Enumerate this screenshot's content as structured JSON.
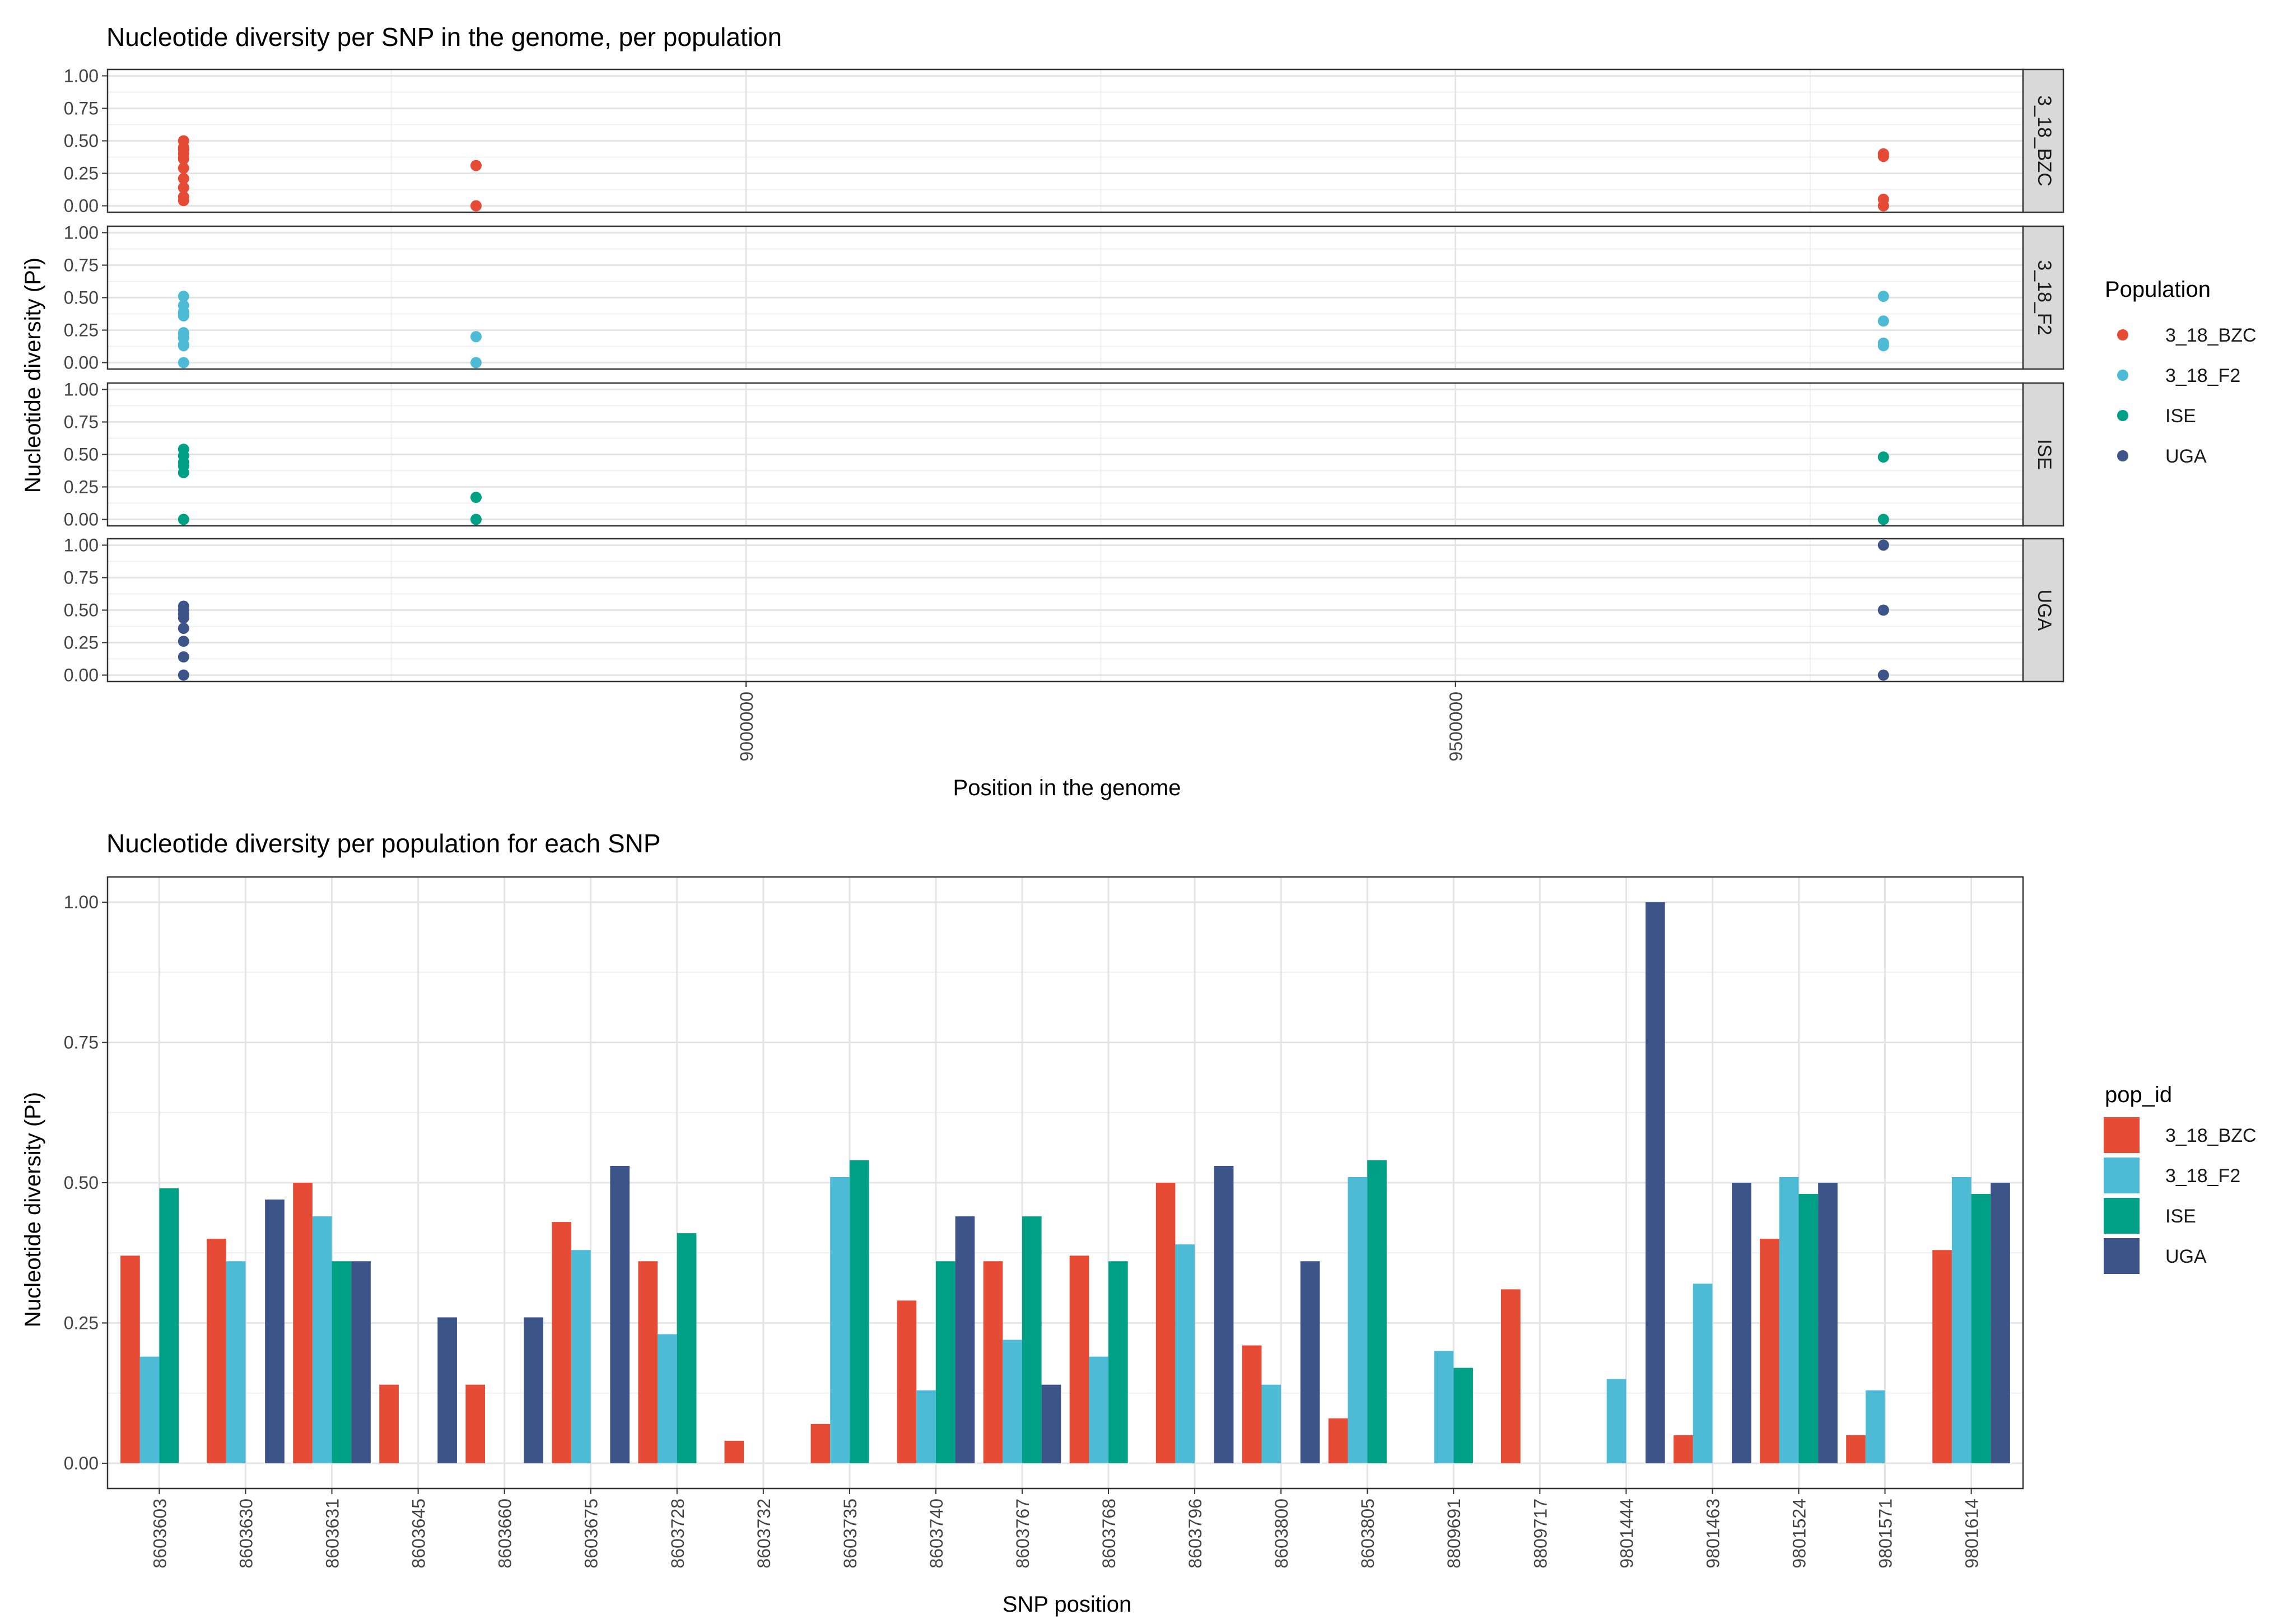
{
  "chart_data": [
    {
      "type": "scatter",
      "title": "Nucleotide diversity per SNP in the genome, per population",
      "xlabel": "Position in the genome",
      "ylabel": "Nucleotide diversity (Pi)",
      "xlim": [
        8550000,
        9900000
      ],
      "ylim": [
        0,
        1
      ],
      "x_ticks": [
        9000000,
        9500000
      ],
      "y_ticks": [
        "0.00",
        "0.25",
        "0.50",
        "0.75",
        "1.00"
      ],
      "facets": [
        "3_18_BZC",
        "3_18_F2",
        "ISE",
        "UGA"
      ],
      "legend_title": "Population",
      "legend_position": "right",
      "grid": true,
      "series": [
        {
          "name": "3_18_BZC",
          "color": "#E64B35",
          "points": [
            [
              8603603,
              0.37
            ],
            [
              8603603,
              0.4
            ],
            [
              8603603,
              0.5
            ],
            [
              8603603,
              0.14
            ],
            [
              8603603,
              0.14
            ],
            [
              8603603,
              0.43
            ],
            [
              8603603,
              0.36
            ],
            [
              8603603,
              0.04
            ],
            [
              8603603,
              0.07
            ],
            [
              8603603,
              0.29
            ],
            [
              8603603,
              0.21
            ],
            [
              8603603,
              0.45
            ],
            [
              8809717,
              0.31
            ],
            [
              8809717,
              0.0
            ],
            [
              9801614,
              0.4
            ],
            [
              9801614,
              0.38
            ],
            [
              9801614,
              0.05
            ],
            [
              9801614,
              0.0
            ]
          ]
        },
        {
          "name": "3_18_F2",
          "color": "#4DBBD5",
          "points": [
            [
              8603603,
              0.19
            ],
            [
              8603603,
              0.36
            ],
            [
              8603603,
              0.44
            ],
            [
              8603603,
              0.38
            ],
            [
              8603603,
              0.51
            ],
            [
              8603603,
              0.23
            ],
            [
              8603603,
              0.13
            ],
            [
              8603603,
              0.22
            ],
            [
              8603603,
              0.19
            ],
            [
              8603603,
              0.39
            ],
            [
              8603603,
              0.14
            ],
            [
              8603603,
              0.0
            ],
            [
              8809717,
              0.2
            ],
            [
              8809717,
              0.0
            ],
            [
              9801614,
              0.51
            ],
            [
              9801614,
              0.32
            ],
            [
              9801614,
              0.13
            ],
            [
              9801614,
              0.15
            ]
          ]
        },
        {
          "name": "ISE",
          "color": "#00A087",
          "points": [
            [
              8603603,
              0.49
            ],
            [
              8603603,
              0.36
            ],
            [
              8603603,
              0.41
            ],
            [
              8603603,
              0.54
            ],
            [
              8603603,
              0.44
            ],
            [
              8603603,
              0.0
            ],
            [
              8809717,
              0.17
            ],
            [
              8809717,
              0.0
            ],
            [
              9801614,
              0.48
            ],
            [
              9801614,
              0.0
            ]
          ]
        },
        {
          "name": "UGA",
          "color": "#3C5488",
          "points": [
            [
              8603603,
              0.47
            ],
            [
              8603603,
              0.36
            ],
            [
              8603603,
              0.26
            ],
            [
              8603603,
              0.53
            ],
            [
              8603603,
              0.44
            ],
            [
              8603603,
              0.14
            ],
            [
              8603603,
              0.0
            ],
            [
              8603603,
              0.5
            ],
            [
              9801614,
              1.0
            ],
            [
              9801614,
              0.5
            ],
            [
              9801614,
              0.0
            ]
          ]
        }
      ]
    },
    {
      "type": "bar",
      "title": "Nucleotide diversity per population for each SNP",
      "xlabel": "SNP position",
      "ylabel": "Nucleotide diversity (Pi)",
      "ylim": [
        -0.045,
        1.045
      ],
      "y_ticks": [
        "0.00",
        "0.25",
        "0.50",
        "0.75",
        "1.00"
      ],
      "legend_title": "pop_id",
      "legend_position": "right",
      "grid": true,
      "categories": [
        "8603603",
        "8603630",
        "8603631",
        "8603645",
        "8603660",
        "8603675",
        "8603728",
        "8603732",
        "8603735",
        "8603740",
        "8603767",
        "8603768",
        "8603796",
        "8603800",
        "8603805",
        "8809691",
        "8809717",
        "9801444",
        "9801463",
        "9801524",
        "9801571",
        "9801614"
      ],
      "series": [
        {
          "name": "3_18_BZC",
          "color": "#E64B35",
          "values": [
            0.37,
            0.4,
            0.5,
            0.14,
            0.14,
            0.43,
            0.36,
            0.04,
            0.07,
            0.29,
            0.36,
            0.37,
            0.5,
            0.21,
            0.08,
            null,
            0.31,
            null,
            0.05,
            0.4,
            0.05,
            0.38
          ]
        },
        {
          "name": "3_18_F2",
          "color": "#4DBBD5",
          "values": [
            0.19,
            0.36,
            0.44,
            null,
            null,
            0.38,
            0.23,
            null,
            0.51,
            0.13,
            0.22,
            0.19,
            0.39,
            0.14,
            0.51,
            0.2,
            null,
            0.15,
            0.32,
            0.51,
            0.13,
            0.51
          ]
        },
        {
          "name": "ISE",
          "color": "#00A087",
          "values": [
            0.49,
            null,
            0.36,
            null,
            null,
            null,
            0.41,
            null,
            0.54,
            0.36,
            0.44,
            0.36,
            null,
            null,
            0.54,
            0.17,
            null,
            null,
            null,
            0.48,
            null,
            0.48
          ]
        },
        {
          "name": "UGA",
          "color": "#3C5488",
          "values": [
            null,
            0.47,
            0.36,
            0.26,
            0.26,
            0.53,
            null,
            null,
            null,
            0.44,
            0.14,
            null,
            0.53,
            0.36,
            null,
            null,
            null,
            1.0,
            0.5,
            0.5,
            null,
            0.5
          ]
        }
      ]
    }
  ]
}
